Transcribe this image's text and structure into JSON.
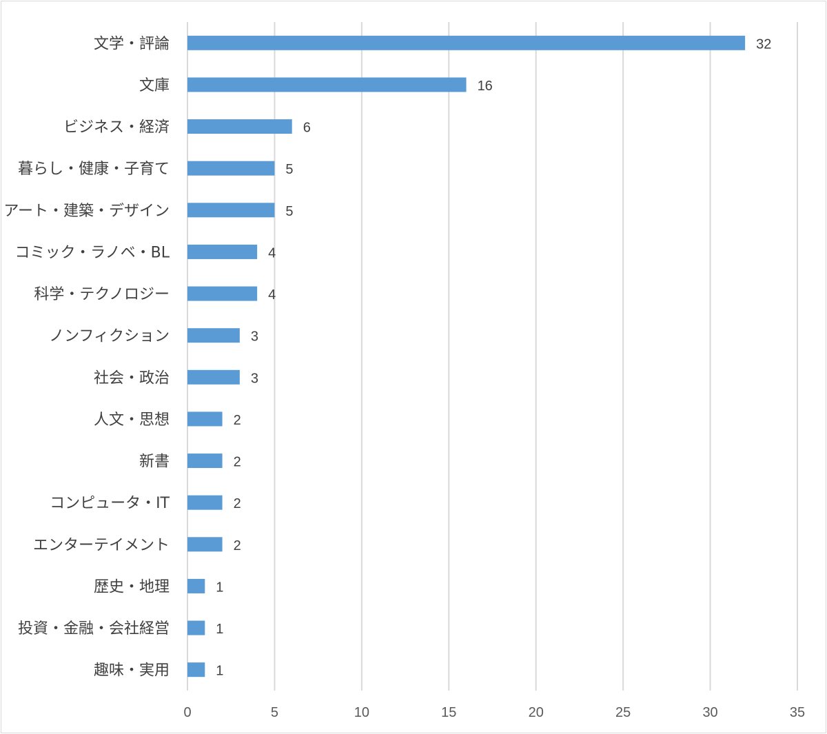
{
  "chart_data": {
    "type": "bar",
    "orientation": "horizontal",
    "categories": [
      "文学・評論",
      "文庫",
      "ビジネス・経済",
      "暮らし・健康・子育て",
      "アート・建築・デザイン",
      "コミック・ラノベ・BL",
      "科学・テクノロジー",
      "ノンフィクション",
      "社会・政治",
      "人文・思想",
      "新書",
      "コンピュータ・IT",
      "エンターテイメント",
      "歴史・地理",
      "投資・金融・会社経営",
      "趣味・実用"
    ],
    "values": [
      32,
      16,
      6,
      5,
      5,
      4,
      4,
      3,
      3,
      2,
      2,
      2,
      2,
      1,
      1,
      1
    ],
    "data_labels": [
      "32",
      "16",
      "6",
      "5",
      "5",
      "4",
      "4",
      "3",
      "3",
      "2",
      "2",
      "2",
      "2",
      "1",
      "1",
      "1"
    ],
    "xlim": [
      0,
      35
    ],
    "x_ticks": [
      "0",
      "5",
      "10",
      "15",
      "20",
      "25",
      "30",
      "35"
    ],
    "grid": "vertical",
    "legend": "none",
    "bar_color": "#5b9bd5",
    "grid_color": "#d9d9d9",
    "text_color": "#404040"
  }
}
